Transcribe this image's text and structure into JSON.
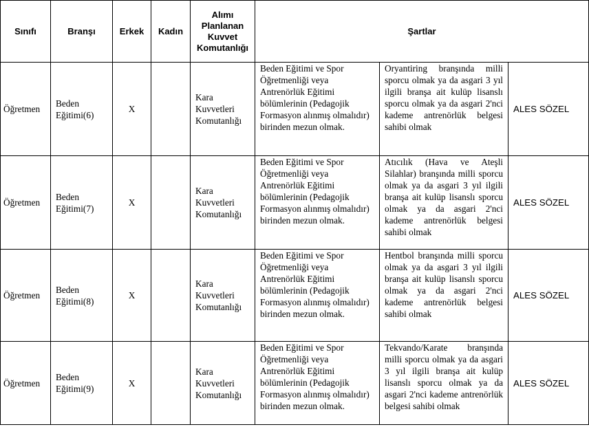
{
  "headers": {
    "sinifi": "Sınıfı",
    "bransi": "Branşı",
    "erkek": "Erkek",
    "kadin": "Kadın",
    "komutanlik": "Alımı Planlanan Kuvvet Komutanlığı",
    "sartlar": "Şartlar"
  },
  "rows": [
    {
      "sinifi": "Öğretmen",
      "bransi": "Beden Eğitimi(6)",
      "erkek": "X",
      "kadin": "",
      "komutanlik": "Kara Kuvvetleri Komutanlığı",
      "egitim": "Beden Eğitimi ve Spor Öğretmenliği veya Antrenörlük Eğitimi bölümlerinin (Pedagojik Formasyon alınmış olmalıdır) birinden mezun olmak.",
      "sart": "Oryantiring branşında milli sporcu olmak ya da asgari 3 yıl ilgili branşa ait kulüp lisanslı sporcu olmak ya da asgari 2'nci kademe antrenörlük belgesi sahibi olmak",
      "sinav": "ALES SÖZEL"
    },
    {
      "sinifi": "Öğretmen",
      "bransi": "Beden Eğitimi(7)",
      "erkek": "X",
      "kadin": "",
      "komutanlik": "Kara Kuvvetleri Komutanlığı",
      "egitim": "Beden Eğitimi ve Spor Öğretmenliği veya Antrenörlük Eğitimi bölümlerinin (Pedagojik Formasyon alınmış olmalıdır) birinden mezun olmak.",
      "sart": "Atıcılık (Hava ve Ateşli Silahlar) branşında milli sporcu olmak ya da asgari 3 yıl ilgili branşa ait kulüp lisanslı sporcu olmak ya da asgari 2'nci kademe antrenörlük belgesi sahibi olmak",
      "sinav": "ALES SÖZEL"
    },
    {
      "sinifi": "Öğretmen",
      "bransi": "Beden Eğitimi(8)",
      "erkek": "X",
      "kadin": "",
      "komutanlik": "Kara Kuvvetleri Komutanlığı",
      "egitim": "Beden Eğitimi ve Spor Öğretmenliği veya Antrenörlük Eğitimi bölümlerinin (Pedagojik Formasyon alınmış olmalıdır) birinden mezun olmak.",
      "sart": "Hentbol branşında milli sporcu olmak ya da asgari 3 yıl ilgili branşa ait kulüp lisanslı sporcu olmak ya da asgari 2'nci kademe antrenörlük belgesi sahibi olmak",
      "sinav": "ALES SÖZEL"
    },
    {
      "sinifi": "Öğretmen",
      "bransi": "Beden Eğitimi(9)",
      "erkek": "X",
      "kadin": "",
      "komutanlik": "Kara Kuvvetleri Komutanlığı",
      "egitim": "Beden Eğitimi ve Spor Öğretmenliği veya Antrenörlük Eğitimi bölümlerinin (Pedagojik Formasyon alınmış olmalıdır) birinden mezun olmak.",
      "sart": "Tekvando/Karate branşında milli sporcu olmak ya da asgari 3 yıl ilgili branşa ait kulüp lisanslı sporcu olmak ya da asgari 2'nci kademe antrenörlük belgesi sahibi olmak",
      "sinav": "ALES SÖZEL"
    }
  ]
}
